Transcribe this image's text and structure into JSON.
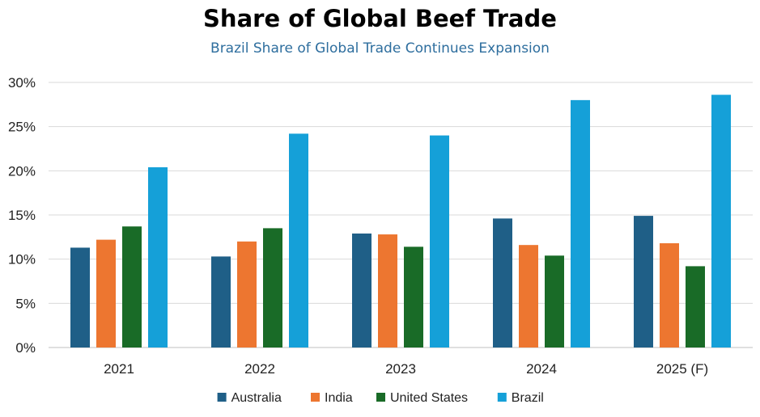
{
  "chart_data": {
    "type": "bar",
    "title": "Share of Global Beef Trade",
    "subtitle": "Brazil Share of Global Trade Continues Expansion",
    "categories": [
      "2021",
      "2022",
      "2023",
      "2024",
      "2025 (F)"
    ],
    "series": [
      {
        "name": "Australia",
        "color": "#1f5f87",
        "values": [
          11.3,
          10.3,
          12.9,
          14.6,
          14.9
        ]
      },
      {
        "name": "India",
        "color": "#ed7630",
        "values": [
          12.2,
          12.0,
          12.8,
          11.6,
          11.8
        ]
      },
      {
        "name": "United States",
        "color": "#196b27",
        "values": [
          13.7,
          13.5,
          11.4,
          10.4,
          9.2
        ]
      },
      {
        "name": "Brazil",
        "color": "#15a0d8",
        "values": [
          20.4,
          24.2,
          24.0,
          28.0,
          28.6
        ]
      }
    ],
    "ylim": [
      0,
      30
    ],
    "y_ticks": [
      "0%",
      "5%",
      "10%",
      "15%",
      "20%",
      "25%",
      "30%"
    ],
    "y_tick_values": [
      0,
      5,
      10,
      15,
      20,
      25,
      30
    ],
    "grid": true,
    "legend_position": "bottom",
    "xlabel": "",
    "ylabel": ""
  }
}
